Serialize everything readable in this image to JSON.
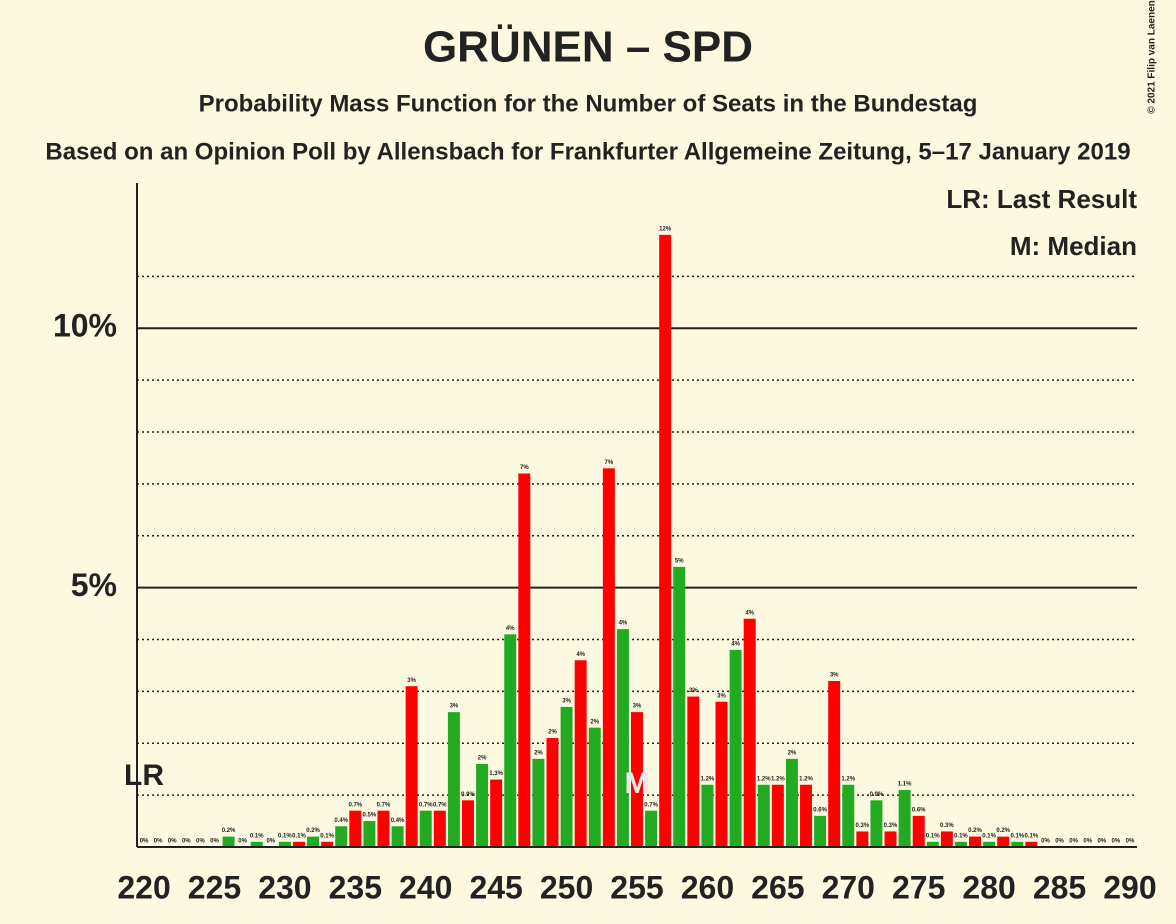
{
  "chart_data": {
    "type": "bar",
    "title": "GRÜNEN – SPD",
    "subtitle": "Probability Mass Function for the Number of Seats in the Bundestag",
    "source": "Based on an Opinion Poll by Allensbach for Frankfurter Allgemeine Zeitung, 5–17 January 2019",
    "copyright": "© 2021 Filip van Laenen",
    "legend": [
      "LR: Last Result",
      "M: Median"
    ],
    "last_result": {
      "label": "LR",
      "x": 220
    },
    "median": {
      "label": "M",
      "x": 255
    },
    "bar_colors": [
      "#22aa22",
      "#ff0000"
    ],
    "x": [
      220,
      221,
      222,
      223,
      224,
      225,
      226,
      227,
      228,
      229,
      230,
      231,
      232,
      233,
      234,
      235,
      236,
      237,
      238,
      239,
      240,
      241,
      242,
      243,
      244,
      245,
      246,
      247,
      248,
      249,
      250,
      251,
      252,
      253,
      254,
      255,
      256,
      257,
      258,
      259,
      260,
      261,
      262,
      263,
      264,
      265,
      266,
      267,
      268,
      269,
      270,
      271,
      272,
      273,
      274,
      275,
      276,
      277,
      278,
      279,
      280,
      281,
      282,
      283,
      284,
      285,
      286,
      287,
      288,
      289,
      290
    ],
    "values": [
      0,
      0,
      0,
      0,
      0,
      0,
      0.2,
      0,
      0.1,
      0,
      0.1,
      0.1,
      0.2,
      0.1,
      0.4,
      0.7,
      0.5,
      0.7,
      0.4,
      3.1,
      0.7,
      0.7,
      2.6,
      0.9,
      1.6,
      1.3,
      4.1,
      7.2,
      1.7,
      2.1,
      2.7,
      3.6,
      2.3,
      7.3,
      4.2,
      2.6,
      0.7,
      11.8,
      5.4,
      2.9,
      1.2,
      2.8,
      3.8,
      4.4,
      1.2,
      1.2,
      1.7,
      1.2,
      0.6,
      3.2,
      1.2,
      0.3,
      0.9,
      0.3,
      1.1,
      0.6,
      0.1,
      0.3,
      0.1,
      0.2,
      0.1,
      0.2,
      0.1,
      0.1,
      0,
      0,
      0,
      0,
      0,
      0,
      0
    ],
    "value_labels": [
      "0%",
      "0%",
      "0%",
      "0%",
      "0%",
      "0%",
      "0.2%",
      "0%",
      "0.1%",
      "0%",
      "0.1%",
      "0.1%",
      "0.2%",
      "0.1%",
      "0.4%",
      "0.7%",
      "0.5%",
      "0.7%",
      "0.4%",
      "3%",
      "0.7%",
      "0.7%",
      "3%",
      "0.9%",
      "2%",
      "1.3%",
      "4%",
      "7%",
      "2%",
      "2%",
      "3%",
      "4%",
      "2%",
      "7%",
      "4%",
      "3%",
      "0.7%",
      "12%",
      "5%",
      "3%",
      "1.2%",
      "3%",
      "4%",
      "4%",
      "1.2%",
      "1.2%",
      "2%",
      "1.2%",
      "0.6%",
      "3%",
      "1.2%",
      "0.3%",
      "0.9%",
      "0.3%",
      "1.1%",
      "0.6%",
      "0.1%",
      "0.3%",
      "0.1%",
      "0.2%",
      "0.1%",
      "0.2%",
      "0.1%",
      "0.1%",
      "0%",
      "0%",
      "0%",
      "0%",
      "0%",
      "0%",
      "0%"
    ],
    "xlim": [
      219.5,
      290.5
    ],
    "xticks": [
      220,
      225,
      230,
      235,
      240,
      245,
      250,
      255,
      260,
      265,
      270,
      275,
      280,
      285,
      290
    ],
    "ylim": [
      0,
      12.8
    ],
    "yticks": [
      {
        "value": 5,
        "label": "5%"
      },
      {
        "value": 10,
        "label": "10%"
      }
    ],
    "minor_yticks": [
      1,
      2,
      3,
      4,
      6,
      7,
      8,
      9,
      11
    ],
    "grid": true
  }
}
